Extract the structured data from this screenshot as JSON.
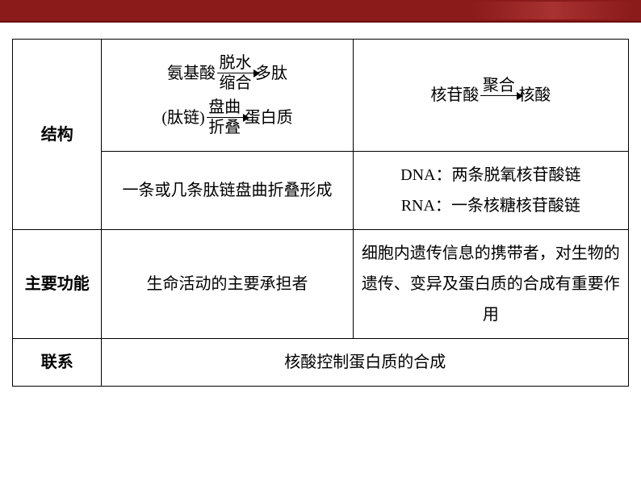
{
  "header": {
    "bar_color": "#8b1a1a"
  },
  "table": {
    "rows": {
      "structure": {
        "label": "结构",
        "protein_reaction1": {
          "reactant": "氨基酸",
          "top": "脱水",
          "bottom": "缩合",
          "product": "多肽"
        },
        "protein_reaction2": {
          "reactant": "(肽链)",
          "top": "盘曲",
          "bottom": "折叠",
          "product": "蛋白质"
        },
        "nucleic_reaction": {
          "reactant": "核苷酸",
          "top": "聚合",
          "product": "核酸"
        },
        "protein_detail": "一条或几条肽链盘曲折叠形成",
        "dna_label": "DNA：",
        "dna_detail": "两条脱氧核苷酸链",
        "rna_label": "RNA：",
        "rna_detail": "一条核糖核苷酸链"
      },
      "function": {
        "label": "主要功能",
        "protein": "生命活动的主要承担者",
        "nucleic": "细胞内遗传信息的携带者，对生物的遗传、变异及蛋白质的合成有重要作用"
      },
      "relation": {
        "label": "联系",
        "content": "核酸控制蛋白质的合成"
      }
    }
  },
  "styles": {
    "font_size": 20,
    "border_color": "#000000",
    "background": "#ffffff"
  }
}
